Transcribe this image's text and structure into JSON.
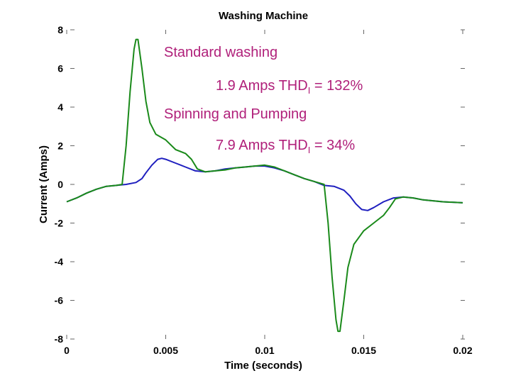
{
  "chart_data": {
    "type": "line",
    "title": "Washing Machine",
    "xlabel": "Time (seconds)",
    "ylabel": "Current (Amps)",
    "xlim": [
      0,
      0.02
    ],
    "ylim": [
      -8,
      8
    ],
    "x_ticks": [
      0,
      0.005,
      0.01,
      0.015,
      0.02
    ],
    "x_tick_labels": [
      "0",
      "0.005",
      "0.01",
      "0.015",
      "0.02"
    ],
    "y_ticks": [
      -8,
      -6,
      -4,
      -2,
      0,
      2,
      4,
      6,
      8
    ],
    "y_tick_labels": [
      "-8",
      "-6",
      "-4",
      "-2",
      "0",
      "2",
      "4",
      "6",
      "8"
    ],
    "annotations": [
      {
        "text": "Standard washing",
        "color": "#b0207a"
      },
      {
        "text": "1.9 Amps THD",
        "sub": "I",
        "suffix": " = 132%",
        "color": "#b0207a"
      },
      {
        "text": "Spinning and Pumping",
        "color": "#b0207a"
      },
      {
        "text": "7.9 Amps THD",
        "sub": "I",
        "suffix": " = 34%",
        "color": "#b0207a"
      }
    ],
    "series": [
      {
        "color": "#1f1fbf",
        "points": [
          [
            0,
            -0.9
          ],
          [
            0.0005,
            -0.7
          ],
          [
            0.001,
            -0.45
          ],
          [
            0.0015,
            -0.25
          ],
          [
            0.002,
            -0.1
          ],
          [
            0.0025,
            -0.05
          ],
          [
            0.003,
            0.0
          ],
          [
            0.0035,
            0.1
          ],
          [
            0.0038,
            0.3
          ],
          [
            0.004,
            0.6
          ],
          [
            0.0043,
            1.0
          ],
          [
            0.0046,
            1.3
          ],
          [
            0.0048,
            1.35
          ],
          [
            0.005,
            1.3
          ],
          [
            0.0055,
            1.1
          ],
          [
            0.006,
            0.9
          ],
          [
            0.0065,
            0.7
          ],
          [
            0.007,
            0.65
          ],
          [
            0.0075,
            0.7
          ],
          [
            0.008,
            0.8
          ],
          [
            0.0085,
            0.85
          ],
          [
            0.009,
            0.9
          ],
          [
            0.0095,
            0.95
          ],
          [
            0.01,
            0.95
          ],
          [
            0.0105,
            0.85
          ],
          [
            0.011,
            0.7
          ],
          [
            0.0115,
            0.5
          ],
          [
            0.012,
            0.3
          ],
          [
            0.0125,
            0.15
          ],
          [
            0.013,
            -0.05
          ],
          [
            0.0135,
            -0.1
          ],
          [
            0.014,
            -0.3
          ],
          [
            0.0143,
            -0.6
          ],
          [
            0.0146,
            -1.0
          ],
          [
            0.0149,
            -1.3
          ],
          [
            0.0152,
            -1.35
          ],
          [
            0.0155,
            -1.2
          ],
          [
            0.016,
            -0.9
          ],
          [
            0.0165,
            -0.7
          ],
          [
            0.017,
            -0.65
          ],
          [
            0.0175,
            -0.7
          ],
          [
            0.018,
            -0.8
          ],
          [
            0.019,
            -0.9
          ],
          [
            0.02,
            -0.95
          ]
        ]
      },
      {
        "color": "#1a8a1a",
        "points": [
          [
            0,
            -0.9
          ],
          [
            0.0005,
            -0.7
          ],
          [
            0.001,
            -0.45
          ],
          [
            0.0015,
            -0.25
          ],
          [
            0.002,
            -0.1
          ],
          [
            0.0025,
            -0.05
          ],
          [
            0.0028,
            0.0
          ],
          [
            0.003,
            2.0
          ],
          [
            0.0032,
            4.8
          ],
          [
            0.0034,
            7.0
          ],
          [
            0.0035,
            7.5
          ],
          [
            0.0036,
            7.5
          ],
          [
            0.0038,
            6.0
          ],
          [
            0.004,
            4.3
          ],
          [
            0.0042,
            3.2
          ],
          [
            0.0045,
            2.6
          ],
          [
            0.005,
            2.3
          ],
          [
            0.0055,
            1.8
          ],
          [
            0.006,
            1.6
          ],
          [
            0.0063,
            1.3
          ],
          [
            0.0066,
            0.8
          ],
          [
            0.007,
            0.65
          ],
          [
            0.0075,
            0.7
          ],
          [
            0.008,
            0.75
          ],
          [
            0.0085,
            0.85
          ],
          [
            0.009,
            0.9
          ],
          [
            0.0095,
            0.95
          ],
          [
            0.01,
            1.0
          ],
          [
            0.0105,
            0.9
          ],
          [
            0.011,
            0.7
          ],
          [
            0.0115,
            0.5
          ],
          [
            0.012,
            0.3
          ],
          [
            0.0125,
            0.15
          ],
          [
            0.013,
            0.0
          ],
          [
            0.0132,
            -2.0
          ],
          [
            0.0134,
            -4.8
          ],
          [
            0.0136,
            -7.0
          ],
          [
            0.0137,
            -7.6
          ],
          [
            0.0138,
            -7.6
          ],
          [
            0.014,
            -6.0
          ],
          [
            0.0142,
            -4.3
          ],
          [
            0.0145,
            -3.1
          ],
          [
            0.015,
            -2.4
          ],
          [
            0.0155,
            -2.0
          ],
          [
            0.016,
            -1.6
          ],
          [
            0.0163,
            -1.2
          ],
          [
            0.0166,
            -0.75
          ],
          [
            0.017,
            -0.65
          ],
          [
            0.0175,
            -0.7
          ],
          [
            0.018,
            -0.8
          ],
          [
            0.019,
            -0.9
          ],
          [
            0.02,
            -0.95
          ]
        ]
      }
    ]
  }
}
